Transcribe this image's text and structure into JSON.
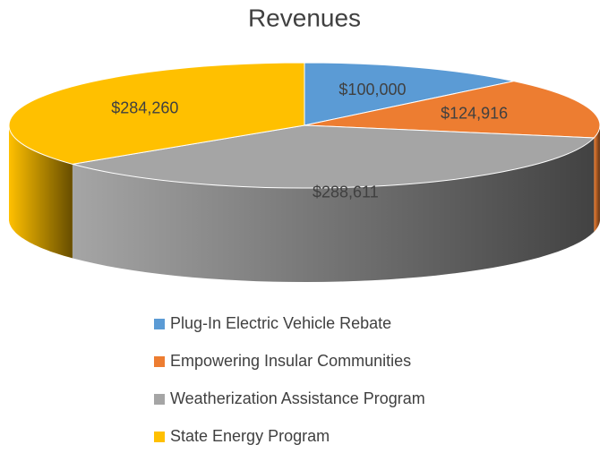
{
  "chart_data": {
    "type": "pie3d",
    "title": "Revenues",
    "categories": [
      "Plug-In Electric Vehicle Rebate",
      "Empowering Insular Communities",
      "Weatherization Assistance Program",
      "State Energy Program"
    ],
    "values": [
      100000,
      124916,
      288611,
      284260
    ],
    "value_labels": [
      "$100,000",
      "$124,916",
      "$288,611",
      "$284,260"
    ],
    "colors": [
      "#5b9bd5",
      "#ed7d31",
      "#a5a5a5",
      "#ffc000"
    ],
    "legend": "bottom"
  }
}
